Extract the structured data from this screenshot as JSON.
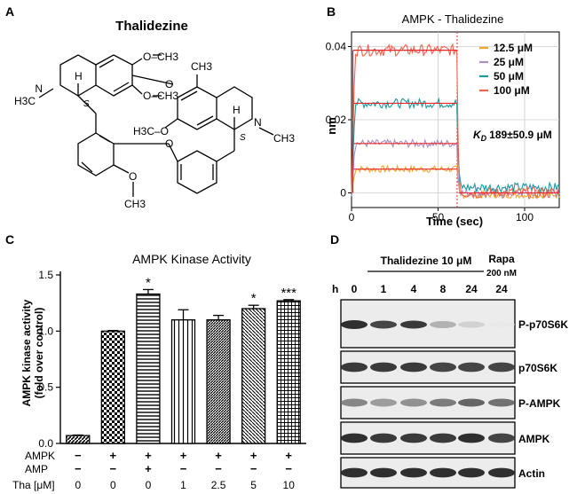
{
  "panels": {
    "A": {
      "letter": "A",
      "title": "Thalidezine",
      "atoms": {
        "n_left": "N",
        "n_right": "N",
        "h3c_left": "H3C",
        "ch3_right": "CH3",
        "h_left": "H",
        "h_right": "H",
        "s_left": "S",
        "s_right": "S",
        "o_a": "O",
        "o_b": "O",
        "o_c": "O",
        "o_d": "O",
        "och3_top_left": "O–CH3",
        "och3_mid_left": "O–CH3",
        "och3_top_right": "CH3",
        "h3co_right": "H3C–O",
        "och3_bottom": "O",
        "ch3_bottom": "CH3"
      }
    },
    "B": {
      "letter": "B",
      "title": "AMPK - Thalidezine",
      "kd_label": "K",
      "kd_sub": "D",
      "kd_value": "189±50.9 μM"
    },
    "C": {
      "letter": "C",
      "title": "AMPK Kinase Activity",
      "row_labels": {
        "ampk": "AMPK",
        "amp": "AMP",
        "tha": "Tha [μM]"
      },
      "ampk_signs": [
        "−",
        "+",
        "+",
        "+",
        "+",
        "+",
        "+"
      ],
      "amp_signs": [
        "−",
        "−",
        "+",
        "−",
        "−",
        "−",
        "−"
      ],
      "tha_values": [
        "0",
        "0",
        "0",
        "1",
        "2.5",
        "5",
        "10"
      ]
    },
    "D": {
      "letter": "D",
      "treatment_label": "Thalidezine 10 μM",
      "rapa_label": "Rapa",
      "rapa_dose": "200 nM",
      "time_unit": "h",
      "times": [
        "0",
        "1",
        "4",
        "8",
        "24",
        "24"
      ],
      "bands": [
        "P-p70S6K",
        "p70S6K",
        "P-AMPK",
        "AMPK",
        "Actin"
      ]
    }
  },
  "chart_data": [
    {
      "panel": "B",
      "type": "line",
      "title": "AMPK - Thalidezine",
      "xlabel": "Time (sec)",
      "ylabel": "nm",
      "xlim": [
        0,
        120
      ],
      "ylim": [
        -0.004,
        0.044
      ],
      "x_ticks": [
        "0",
        "50",
        "100"
      ],
      "y_ticks": [
        "0",
        "0.02",
        "0.04"
      ],
      "dissociation_start": 61,
      "grid": true,
      "legend_position": "top-right",
      "series": [
        {
          "name": "12.5  μM",
          "color": "#f4a62a",
          "plateau": 0.0065,
          "dissoc_end": -0.0005
        },
        {
          "name": "25   μM",
          "color": "#a98fc4",
          "plateau": 0.0135,
          "dissoc_end": 0.0
        },
        {
          "name": "50   μM",
          "color": "#1a9aa0",
          "plateau": 0.0245,
          "dissoc_end": 0.0015
        },
        {
          "name": "100  μM",
          "color": "#f0644c",
          "plateau": 0.039,
          "dissoc_end": 0.0
        }
      ],
      "fit_color": "#e8262a"
    },
    {
      "panel": "C",
      "type": "bar",
      "title": "AMPK Kinase Activity",
      "ylabel": "AMPK kinase activity (fold over control)",
      "ylim": [
        0.0,
        1.5
      ],
      "y_ticks": [
        "0.0",
        "0.5",
        "1.0",
        "1.5"
      ],
      "values": [
        0.07,
        1.0,
        1.33,
        1.1,
        1.1,
        1.2,
        1.27
      ],
      "errors": [
        0.005,
        0.005,
        0.04,
        0.09,
        0.04,
        0.03,
        0.01
      ],
      "significance": [
        "",
        "",
        "*",
        "",
        "",
        "*",
        "***"
      ],
      "patterns": [
        "hatch-diag",
        "checker",
        "hstripe",
        "vstripe",
        "dense-diag",
        "diag-fine",
        "grid"
      ]
    }
  ]
}
